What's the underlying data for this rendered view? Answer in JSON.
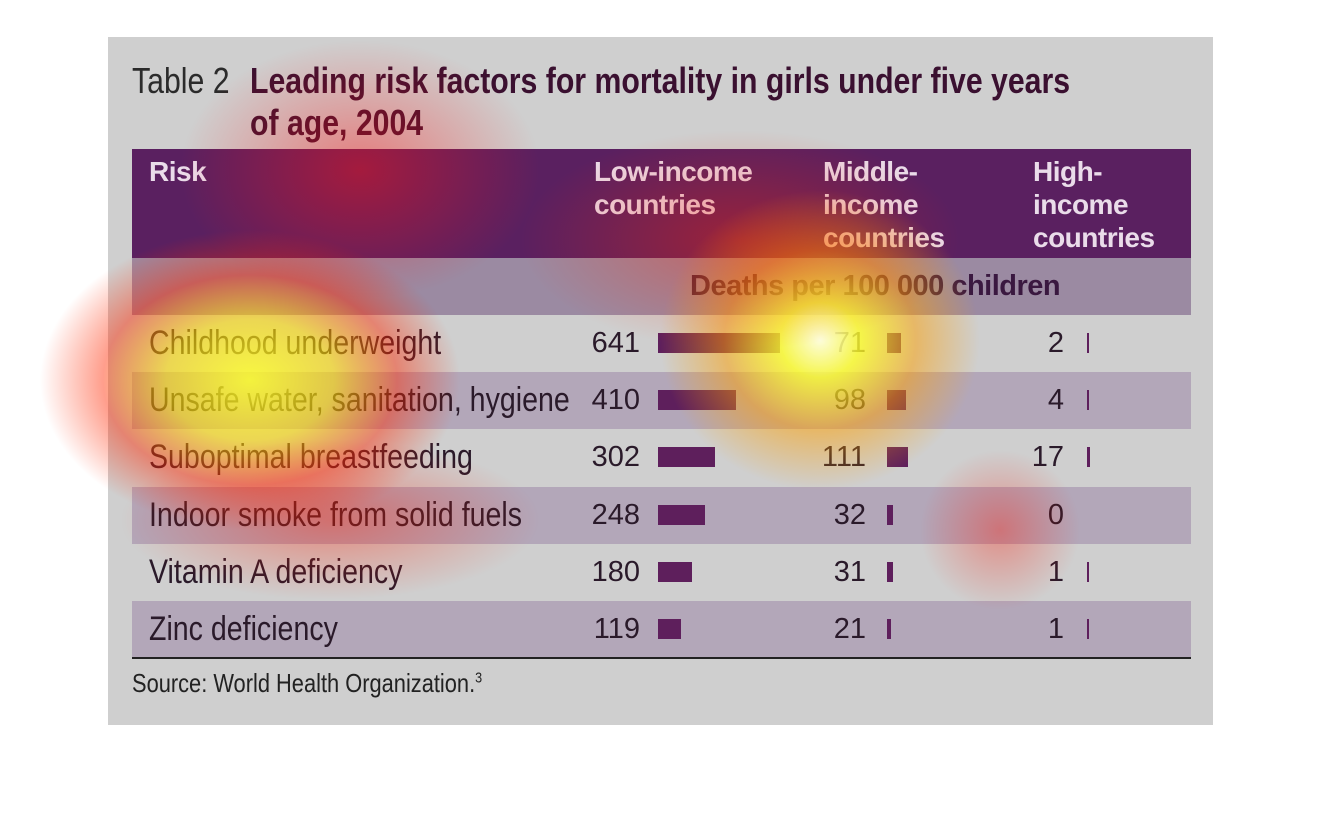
{
  "table": {
    "label": "Table 2",
    "title": "Leading risk factors for mortality in girls under five years of age, 2004",
    "columns": [
      "Risk",
      "Low-income countries",
      "Middle-income countries",
      "High-income countries"
    ],
    "unit": "Deaths per 100 000 children",
    "rows": [
      {
        "risk": "Childhood underweight",
        "values": [
          641,
          71,
          2
        ]
      },
      {
        "risk": "Unsafe water, sanitation, hygiene",
        "values": [
          410,
          98,
          4
        ]
      },
      {
        "risk": "Suboptimal breastfeeding",
        "values": [
          302,
          111,
          17
        ]
      },
      {
        "risk": "Indoor smoke from solid fuels",
        "values": [
          248,
          32,
          0
        ]
      },
      {
        "risk": "Vitamin A deficiency",
        "values": [
          180,
          31,
          1
        ]
      },
      {
        "risk": "Zinc deficiency",
        "values": [
          119,
          21,
          1
        ]
      }
    ],
    "bar_color": "#5e1f5c"
  },
  "source": {
    "text": "Source: World Health Organization.",
    "ref": "3"
  }
}
